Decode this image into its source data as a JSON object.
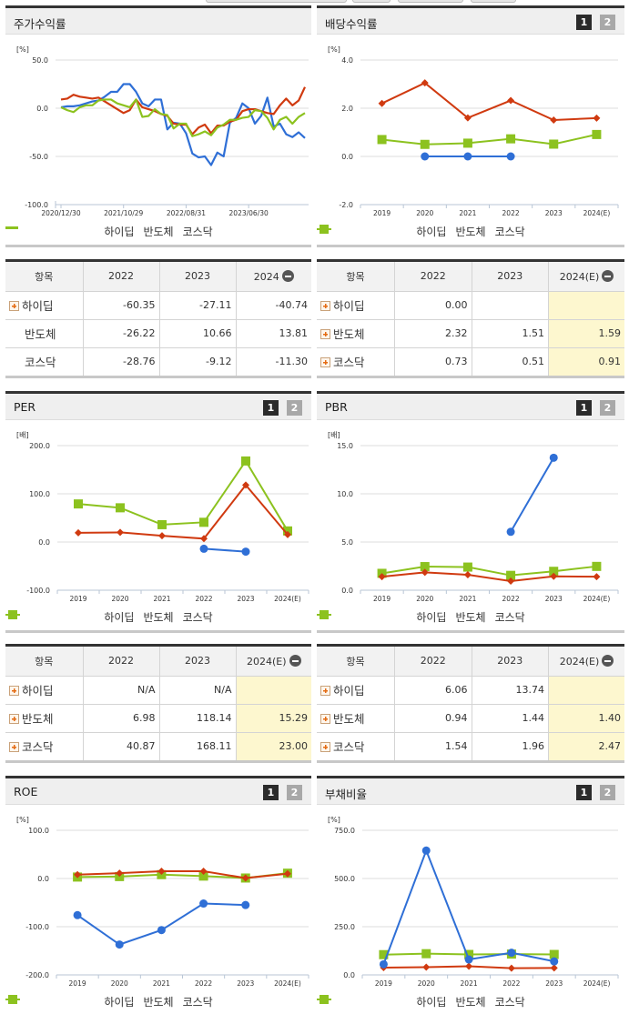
{
  "colors": {
    "hidip": "#2f6fd6",
    "semiconductor": "#d03a10",
    "kosdaq": "#8cc21f",
    "estimate_bg": "#fdf7cf"
  },
  "legend": {
    "s1": "하이딥",
    "s2": "반도체",
    "s3": "코스닥"
  },
  "tabs": {
    "t1": "1",
    "t2": "2"
  },
  "panels": {
    "stock_return": {
      "title": "주가수익률",
      "unit": "[%]"
    },
    "dividend": {
      "title": "배당수익률",
      "unit": "[%]"
    },
    "per": {
      "title": "PER",
      "unit": "[배]"
    },
    "pbr": {
      "title": "PBR",
      "unit": "[배]"
    },
    "roe": {
      "title": "ROE",
      "unit": "[%]"
    },
    "debt": {
      "title": "부채비율",
      "unit": "[%]"
    }
  },
  "tables": {
    "stock_return": {
      "headers": [
        "항목",
        "2022",
        "2023",
        "2024"
      ],
      "rows": [
        {
          "name": "하이딥",
          "expand": true,
          "values": [
            "-60.35",
            "-27.11",
            "-40.74"
          ]
        },
        {
          "name": "반도체",
          "expand": false,
          "values": [
            "-26.22",
            "10.66",
            "13.81"
          ]
        },
        {
          "name": "코스닥",
          "expand": false,
          "values": [
            "-28.76",
            "-9.12",
            "-11.30"
          ]
        }
      ]
    },
    "dividend": {
      "headers": [
        "항목",
        "2022",
        "2023",
        "2024(E)"
      ],
      "rows": [
        {
          "name": "하이딥",
          "expand": true,
          "values": [
            "0.00",
            "",
            ""
          ]
        },
        {
          "name": "반도체",
          "expand": true,
          "values": [
            "2.32",
            "1.51",
            "1.59"
          ]
        },
        {
          "name": "코스닥",
          "expand": true,
          "values": [
            "0.73",
            "0.51",
            "0.91"
          ]
        }
      ]
    },
    "per": {
      "headers": [
        "항목",
        "2022",
        "2023",
        "2024(E)"
      ],
      "rows": [
        {
          "name": "하이딥",
          "expand": true,
          "values": [
            "N/A",
            "N/A",
            ""
          ]
        },
        {
          "name": "반도체",
          "expand": true,
          "values": [
            "6.98",
            "118.14",
            "15.29"
          ]
        },
        {
          "name": "코스닥",
          "expand": true,
          "values": [
            "40.87",
            "168.11",
            "23.00"
          ]
        }
      ]
    },
    "pbr": {
      "headers": [
        "항목",
        "2022",
        "2023",
        "2024(E)"
      ],
      "rows": [
        {
          "name": "하이딥",
          "expand": true,
          "values": [
            "6.06",
            "13.74",
            ""
          ]
        },
        {
          "name": "반도체",
          "expand": true,
          "values": [
            "0.94",
            "1.44",
            "1.40"
          ]
        },
        {
          "name": "코스닥",
          "expand": true,
          "values": [
            "1.54",
            "1.96",
            "2.47"
          ]
        }
      ]
    }
  },
  "chart_data": [
    {
      "id": "stock_return",
      "type": "line",
      "title": "주가수익률",
      "ylabel": "[%]",
      "ylim": [
        -100,
        50
      ],
      "yticks": [
        "50.0",
        "0.0",
        "-50.0",
        "-100.0"
      ],
      "xticks": [
        "2020/12/30",
        "2021/10/29",
        "2022/08/31",
        "2023/06/30"
      ],
      "grid": true,
      "legend_position": "bottom",
      "series": [
        {
          "name": "하이딥",
          "values": [
            1,
            2,
            2,
            3,
            5,
            7,
            8,
            12,
            17,
            17,
            25,
            25,
            17,
            5,
            2,
            9,
            9,
            -22,
            -15,
            -16,
            -26,
            -47,
            -51,
            -50,
            -59,
            -46,
            -50,
            -15,
            -10,
            5,
            0,
            -16,
            -8,
            11,
            -19,
            -16,
            -27,
            -30,
            -25,
            -31
          ]
        },
        {
          "name": "반도체",
          "values": [
            9,
            10,
            14,
            12,
            11,
            10,
            11,
            7,
            3,
            -1,
            -5,
            -2,
            9,
            1,
            -1,
            -3,
            -6,
            -8,
            -16,
            -17,
            -17,
            -27,
            -20,
            -17,
            -26,
            -18,
            -18,
            -14,
            -12,
            -3,
            -1,
            -1,
            -3,
            -5,
            -6,
            3,
            10,
            3,
            8,
            22
          ]
        },
        {
          "name": "코스닥",
          "values": [
            1,
            -2,
            -4,
            1,
            3,
            3,
            8,
            9,
            9,
            5,
            3,
            1,
            9,
            -9,
            -8,
            -1,
            -6,
            -7,
            -21,
            -16,
            -16,
            -29,
            -27,
            -24,
            -28,
            -20,
            -17,
            -12,
            -12,
            -10,
            -9,
            -2,
            -3,
            -10,
            -22,
            -12,
            -9,
            -16,
            -9,
            -5
          ]
        }
      ]
    },
    {
      "id": "dividend",
      "type": "line",
      "title": "배당수익률",
      "ylabel": "[%]",
      "ylim": [
        -2,
        4
      ],
      "yticks": [
        "4.0",
        "2.0",
        "0.0",
        "-2.0"
      ],
      "categories": [
        "2019",
        "2020",
        "2021",
        "2022",
        "2023",
        "2024(E)"
      ],
      "grid": true,
      "legend_position": "bottom",
      "series": [
        {
          "name": "하이딥",
          "values": [
            null,
            0.0,
            0.0,
            0.0,
            null,
            null
          ]
        },
        {
          "name": "반도체",
          "values": [
            2.2,
            3.05,
            1.6,
            2.32,
            1.51,
            1.59
          ]
        },
        {
          "name": "코스닥",
          "values": [
            0.7,
            0.5,
            0.55,
            0.73,
            0.51,
            0.91
          ]
        }
      ]
    },
    {
      "id": "per",
      "type": "line",
      "title": "PER",
      "ylabel": "[배]",
      "ylim": [
        -100,
        200
      ],
      "yticks": [
        "200.0",
        "100.0",
        "0.0",
        "-100.0"
      ],
      "categories": [
        "2019",
        "2020",
        "2021",
        "2022",
        "2023",
        "2024(E)"
      ],
      "grid": true,
      "legend_position": "bottom",
      "series": [
        {
          "name": "하이딥",
          "values": [
            null,
            null,
            null,
            -14,
            -20,
            null
          ]
        },
        {
          "name": "반도체",
          "values": [
            19,
            20,
            13,
            6.98,
            118.14,
            15.29
          ]
        },
        {
          "name": "코스닥",
          "values": [
            79,
            71,
            36,
            40.87,
            168.11,
            23.0
          ]
        }
      ]
    },
    {
      "id": "pbr",
      "type": "line",
      "title": "PBR",
      "ylabel": "[배]",
      "ylim": [
        0,
        15
      ],
      "yticks": [
        "15.0",
        "10.0",
        "5.0",
        "0.0"
      ],
      "categories": [
        "2019",
        "2020",
        "2021",
        "2022",
        "2023",
        "2024(E)"
      ],
      "grid": true,
      "legend_position": "bottom",
      "series": [
        {
          "name": "하이딥",
          "values": [
            null,
            null,
            null,
            6.06,
            13.74,
            null
          ]
        },
        {
          "name": "반도체",
          "values": [
            1.4,
            1.85,
            1.6,
            0.94,
            1.44,
            1.4
          ]
        },
        {
          "name": "코스닥",
          "values": [
            1.75,
            2.45,
            2.4,
            1.54,
            1.96,
            2.47
          ]
        }
      ]
    },
    {
      "id": "roe",
      "type": "line",
      "title": "ROE",
      "ylabel": "[%]",
      "ylim": [
        -200,
        100
      ],
      "yticks": [
        "100.0",
        "0.0",
        "-100.0",
        "-200.0"
      ],
      "categories": [
        "2019",
        "2020",
        "2021",
        "2022",
        "2023",
        "2024(E)"
      ],
      "grid": true,
      "legend_position": "bottom",
      "series": [
        {
          "name": "하이딥",
          "values": [
            -76,
            -137,
            -107,
            -52,
            -55,
            null
          ]
        },
        {
          "name": "반도체",
          "values": [
            8,
            11,
            15,
            15,
            1,
            10
          ]
        },
        {
          "name": "코스닥",
          "values": [
            3,
            4,
            8,
            5,
            1,
            11
          ]
        }
      ]
    },
    {
      "id": "debt",
      "type": "line",
      "title": "부채비율",
      "ylabel": "[%]",
      "ylim": [
        0,
        750
      ],
      "yticks": [
        "750.0",
        "500.0",
        "250.0",
        "0.0"
      ],
      "categories": [
        "2019",
        "2020",
        "2021",
        "2022",
        "2023",
        "2024(E)"
      ],
      "grid": true,
      "legend_position": "bottom",
      "series": [
        {
          "name": "하이딥",
          "values": [
            55,
            645,
            80,
            115,
            70,
            null
          ]
        },
        {
          "name": "반도체",
          "values": [
            38,
            40,
            45,
            35,
            36,
            null
          ]
        },
        {
          "name": "코스닥",
          "values": [
            105,
            110,
            106,
            108,
            106,
            null
          ]
        }
      ]
    }
  ]
}
